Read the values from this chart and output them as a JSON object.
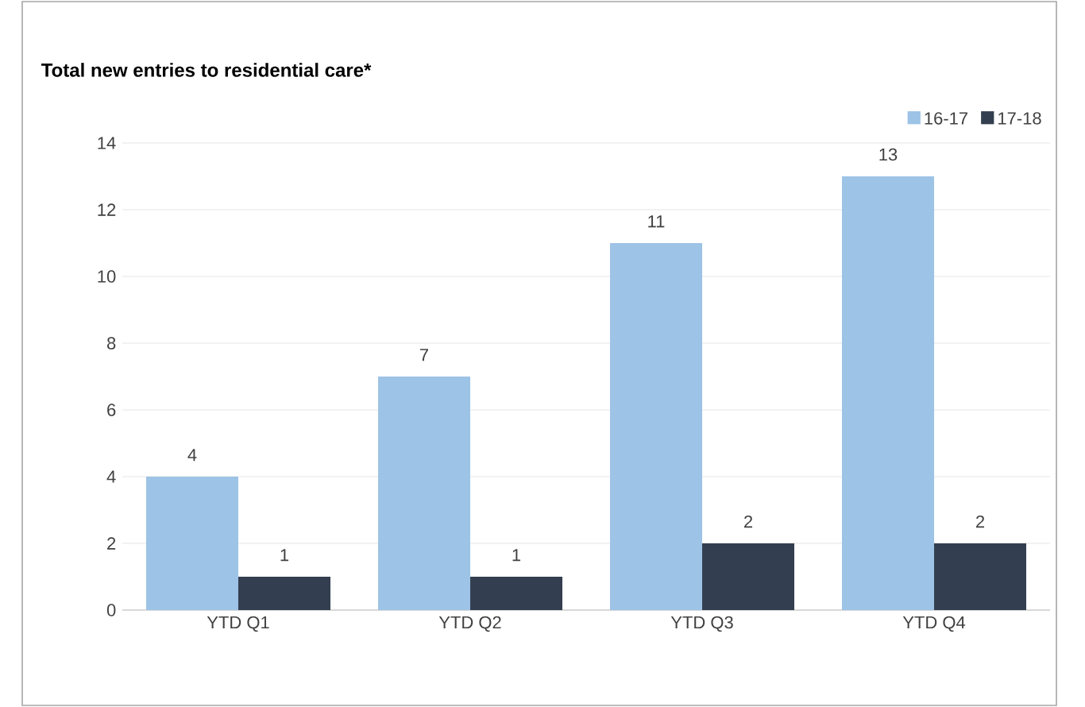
{
  "chart_data": {
    "type": "bar",
    "title": "Total new entries to residential care*",
    "categories": [
      "YTD Q1",
      "YTD Q2",
      "YTD Q3",
      "YTD Q4"
    ],
    "series": [
      {
        "name": "16-17",
        "color": "#9dc3e6",
        "values": [
          4,
          7,
          11,
          13
        ]
      },
      {
        "name": "17-18",
        "color": "#333f50",
        "values": [
          1,
          1,
          2,
          2
        ]
      }
    ],
    "ylim": [
      0,
      14
    ],
    "yticks": [
      0,
      2,
      4,
      6,
      8,
      10,
      12,
      14
    ],
    "grid": "y",
    "legend": "top right",
    "data_labels": true
  }
}
